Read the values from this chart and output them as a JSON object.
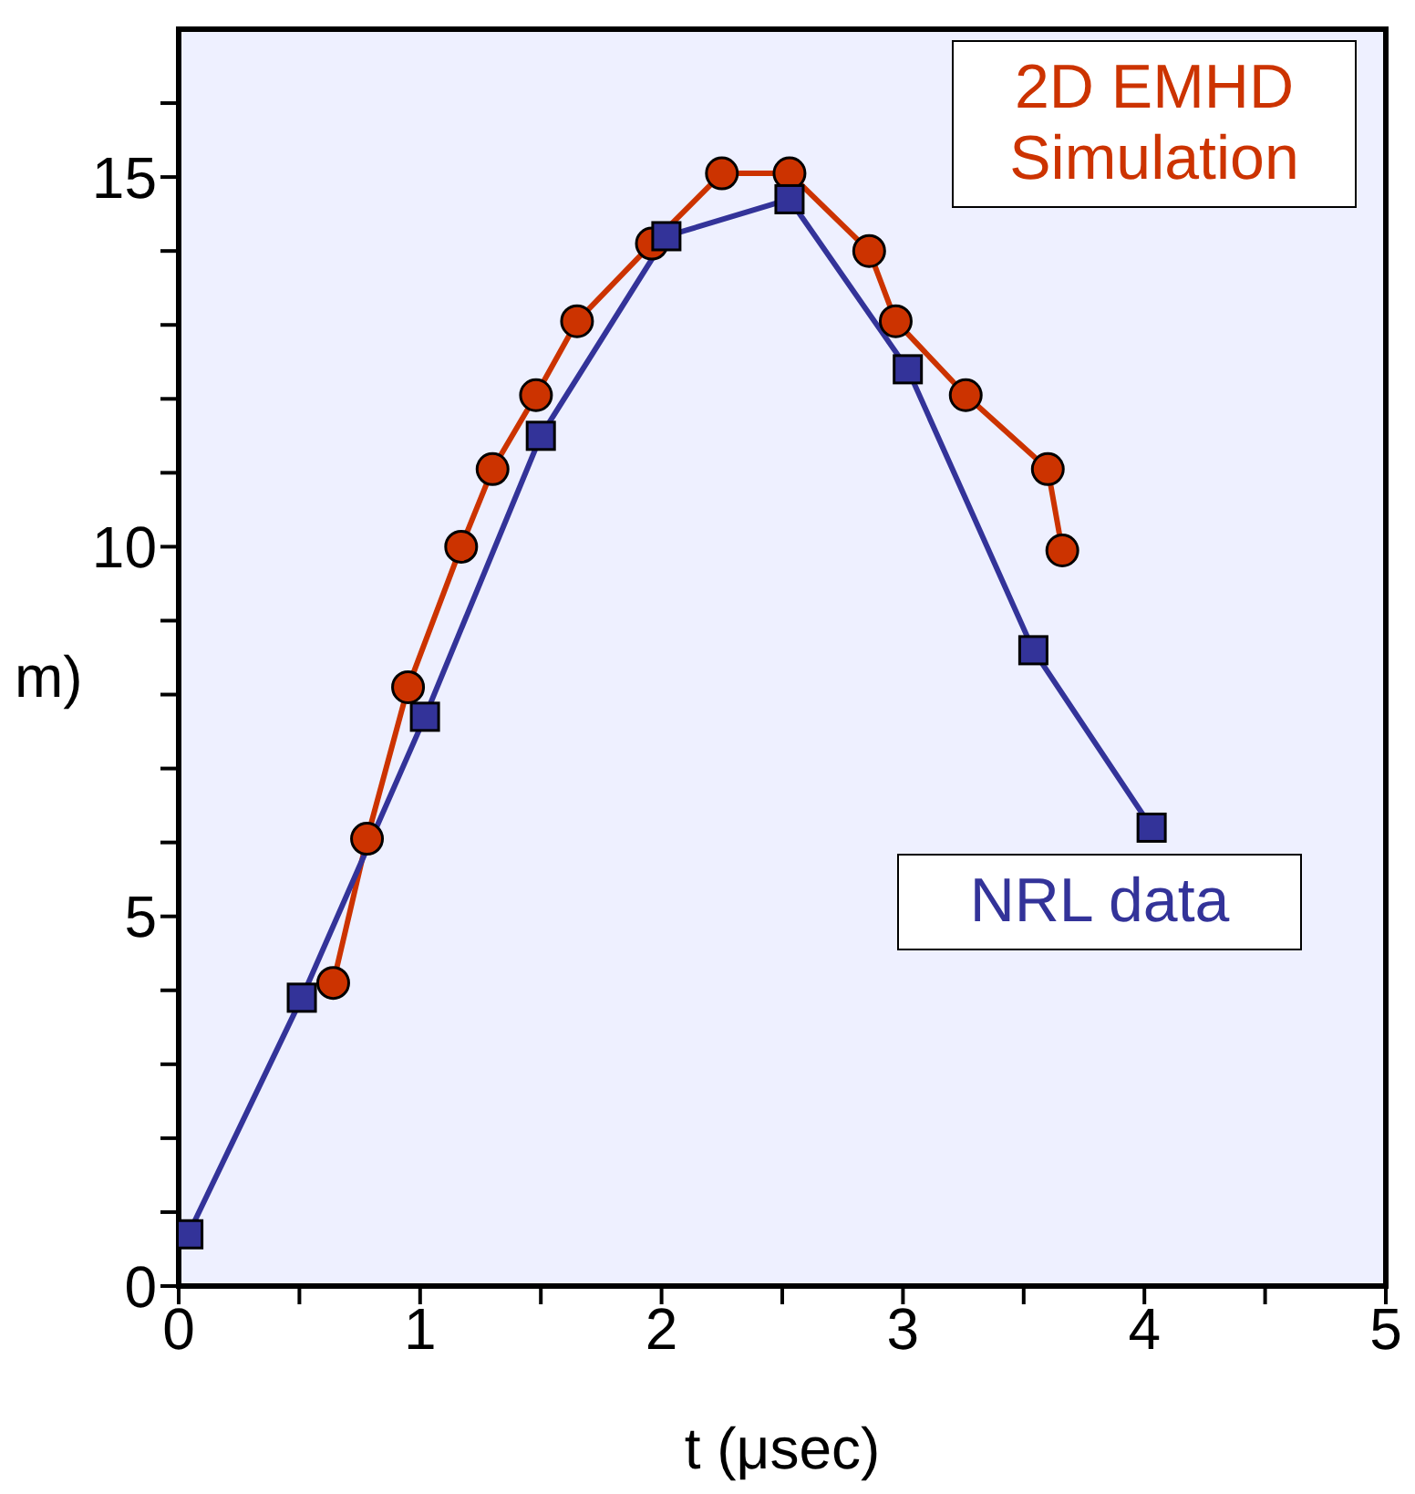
{
  "chart_data": {
    "type": "line",
    "xlabel": "t (μsec)",
    "ylabel": "m)",
    "xlim": [
      0,
      5
    ],
    "xticks": [
      0,
      {
        "value": 0.5,
        "label": null
      },
      1,
      {
        "value": 1.5,
        "label": null
      },
      2,
      {
        "value": 2.5,
        "label": null
      },
      3,
      {
        "value": 3.5,
        "label": null
      },
      4,
      {
        "value": 4.5,
        "label": null
      },
      5
    ],
    "ylim": [
      0,
      17
    ],
    "yticks": [
      0,
      {
        "value": 1,
        "label": null
      },
      {
        "value": 2,
        "label": null
      },
      {
        "value": 3,
        "label": null
      },
      {
        "value": 4,
        "label": null
      },
      5,
      {
        "value": 6,
        "label": null
      },
      {
        "value": 7,
        "label": null
      },
      {
        "value": 8,
        "label": null
      },
      {
        "value": 9,
        "label": null
      },
      10,
      {
        "value": 11,
        "label": null
      },
      {
        "value": 12,
        "label": null
      },
      {
        "value": 13,
        "label": null
      },
      {
        "value": 14,
        "label": null
      },
      15,
      {
        "value": 16,
        "label": null
      }
    ],
    "series": [
      {
        "name": "2D EMHD Simulation",
        "color": "#cc3300",
        "marker": "circle",
        "x": [
          0.64,
          0.78,
          0.95,
          1.17,
          1.3,
          1.48,
          1.65,
          1.96,
          2.25,
          2.53,
          2.86,
          2.97,
          3.26,
          3.6,
          3.66
        ],
        "values": [
          4.1,
          6.05,
          8.1,
          10.0,
          11.05,
          12.05,
          13.05,
          14.1,
          15.05,
          15.05,
          14.0,
          13.05,
          12.05,
          11.05,
          9.95
        ]
      },
      {
        "name": "NRL data",
        "color": "#333399",
        "marker": "square",
        "x": [
          0.04,
          0.51,
          1.02,
          1.5,
          2.02,
          2.53,
          3.02,
          3.54,
          4.03
        ],
        "values": [
          0.7,
          3.9,
          7.7,
          11.5,
          14.2,
          14.7,
          12.4,
          8.6,
          6.2
        ]
      }
    ]
  }
}
